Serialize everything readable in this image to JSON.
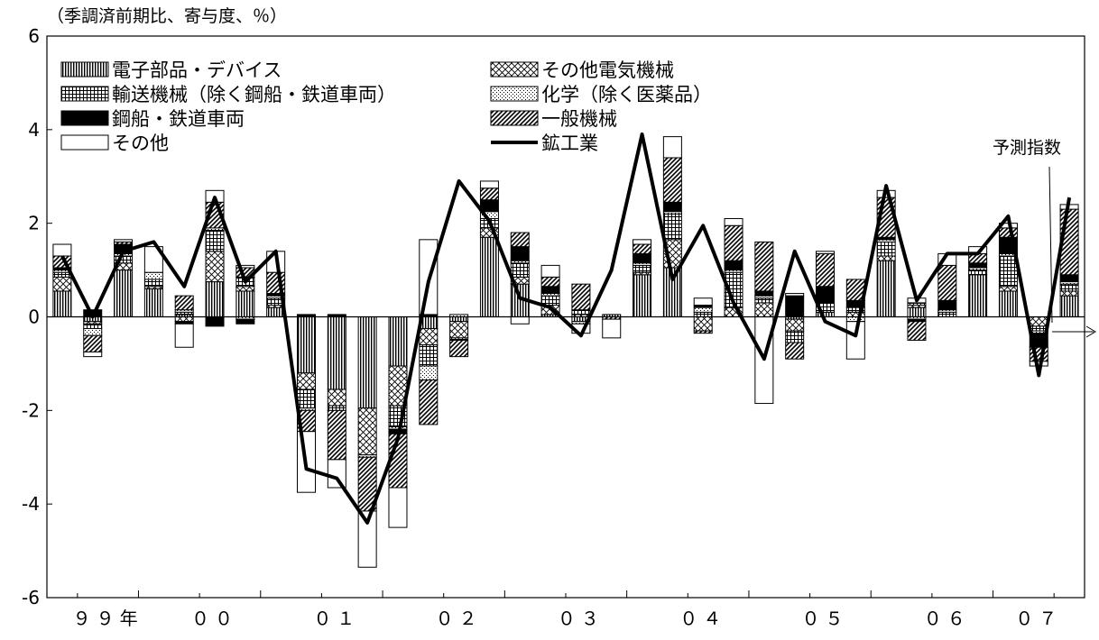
{
  "chart_data": {
    "type": "bar",
    "stacked": true,
    "title": "（季調済前期比、寄与度、％）",
    "ylim": [
      -6,
      6
    ],
    "yticks": [
      -6,
      -4,
      -2,
      0,
      2,
      4,
      6
    ],
    "x_year_labels": [
      {
        "label": "９９年",
        "index": 2
      },
      {
        "label": "００",
        "index": 5.5
      },
      {
        "label": "０１",
        "index": 9.5
      },
      {
        "label": "０２",
        "index": 13.5
      },
      {
        "label": "０３",
        "index": 17.5
      },
      {
        "label": "０４",
        "index": 21.5
      },
      {
        "label": "０５",
        "index": 25.5
      },
      {
        "label": "０６",
        "index": 29.5
      },
      {
        "label": "０７",
        "index": 32.5
      }
    ],
    "forecast_label": "予測指数",
    "legend": [
      {
        "key": "electronic",
        "label": "電子部品・デバイス",
        "pattern": "vstripe"
      },
      {
        "key": "other_elec",
        "label": "その他電気機械",
        "pattern": "crosshatch"
      },
      {
        "key": "transport",
        "label": "輸送機械（除く鋼船・鉄道車両）",
        "pattern": "grid"
      },
      {
        "key": "chemical",
        "label": "化学（除く医薬品）",
        "pattern": "dots"
      },
      {
        "key": "ship_rail",
        "label": "鋼船・鉄道車両",
        "pattern": "solid"
      },
      {
        "key": "general",
        "label": "一般機械",
        "pattern": "diag"
      },
      {
        "key": "others",
        "label": "その他",
        "pattern": "white"
      },
      {
        "key": "mining",
        "label": "鉱工業",
        "pattern": "line"
      }
    ],
    "series": [
      {
        "key": "electronic",
        "values": [
          0.55,
          -0.1,
          1.0,
          0.6,
          0.05,
          0.75,
          0.55,
          0.2,
          -1.2,
          -1.55,
          -1.95,
          -1.05,
          -0.25,
          -0.1,
          1.7,
          0.7,
          0.05,
          -0.1,
          0.05,
          0.9,
          1.05,
          0.0,
          0.0,
          0.0,
          -0.05,
          0.1,
          0.0,
          1.2,
          0.2,
          0.0,
          0.9,
          0.55,
          0.0,
          0.45
        ]
      },
      {
        "key": "other_elec",
        "values": [
          0.3,
          -0.05,
          0.15,
          0.05,
          -0.1,
          0.65,
          0.1,
          0.05,
          -0.35,
          -0.35,
          -1.0,
          -0.85,
          -0.35,
          -0.35,
          0.2,
          0.15,
          0.2,
          0.05,
          0.0,
          0.05,
          0.6,
          -0.3,
          0.2,
          0.3,
          -0.25,
          0.0,
          0.1,
          0.1,
          0.05,
          0.0,
          0.0,
          0.1,
          -0.2,
          0.1
        ]
      },
      {
        "key": "transport",
        "values": [
          0.1,
          -0.1,
          0.15,
          0.15,
          0.05,
          0.45,
          0.2,
          0.15,
          -0.4,
          -0.1,
          -0.0,
          -0.45,
          -0.45,
          -0.05,
          0.2,
          0.3,
          0.2,
          0.1,
          0.0,
          0.15,
          0.55,
          0.1,
          0.75,
          0.1,
          -0.25,
          0.2,
          0.1,
          0.3,
          0.05,
          0.1,
          0.1,
          0.65,
          -0.1,
          0.15
        ]
      },
      {
        "key": "chemical",
        "values": [
          0.05,
          -0.15,
          0.05,
          0.15,
          0.05,
          0.05,
          -0.05,
          0.05,
          -0.05,
          0.0,
          -0.05,
          -0.05,
          -0.3,
          0.05,
          0.15,
          0.05,
          0.05,
          -0.05,
          0.0,
          0.05,
          0.05,
          0.1,
          0.05,
          0.05,
          -0.0,
          0.0,
          -0.1,
          0.05,
          -0.05,
          0.05,
          0.05,
          0.05,
          -0.05,
          0.05
        ]
      },
      {
        "key": "ship_rail",
        "values": [
          0.05,
          0.15,
          0.2,
          0.0,
          -0.05,
          -0.2,
          -0.1,
          0.05,
          0.05,
          0.05,
          -0.0,
          -0.1,
          0.05,
          0.0,
          0.25,
          0.3,
          0.15,
          0.0,
          0.0,
          0.2,
          0.2,
          0.05,
          0.2,
          0.1,
          0.45,
          0.35,
          0.15,
          0.05,
          -0.05,
          0.2,
          0.1,
          0.35,
          -0.3,
          0.15
        ]
      },
      {
        "key": "general",
        "values": [
          0.25,
          -0.35,
          0.05,
          0.0,
          0.3,
          0.55,
          0.2,
          0.45,
          -0.45,
          -1.05,
          -1.15,
          -1.15,
          -0.95,
          -0.35,
          0.25,
          0.3,
          0.2,
          0.55,
          -0.05,
          0.2,
          0.95,
          -0.05,
          0.75,
          1.05,
          -0.35,
          0.7,
          0.45,
          0.85,
          -0.4,
          0.75,
          0.2,
          0.2,
          -0.3,
          1.4
        ]
      },
      {
        "key": "others",
        "values": [
          0.25,
          -0.1,
          0.05,
          0.55,
          -0.5,
          0.25,
          0.05,
          0.45,
          -1.3,
          -0.6,
          -1.2,
          -0.85,
          1.6,
          0.0,
          0.15,
          -0.15,
          0.25,
          -0.2,
          -0.4,
          0.1,
          0.45,
          0.15,
          0.15,
          -1.85,
          0.05,
          0.05,
          -0.8,
          0.15,
          0.1,
          0.25,
          0.15,
          0.1,
          -0.1,
          0.1
        ]
      }
    ],
    "line": {
      "key": "mining",
      "values": [
        1.3,
        0.0,
        1.4,
        1.6,
        0.65,
        2.55,
        0.75,
        1.4,
        -3.25,
        -3.45,
        -4.4,
        -2.6,
        0.75,
        2.9,
        2.05,
        0.4,
        0.2,
        -0.4,
        1.0,
        3.9,
        0.8,
        1.95,
        0.3,
        -0.9,
        1.4,
        -0.1,
        -0.4,
        2.8,
        0.35,
        1.35,
        1.35,
        2.15,
        -1.25,
        2.55
      ]
    }
  }
}
